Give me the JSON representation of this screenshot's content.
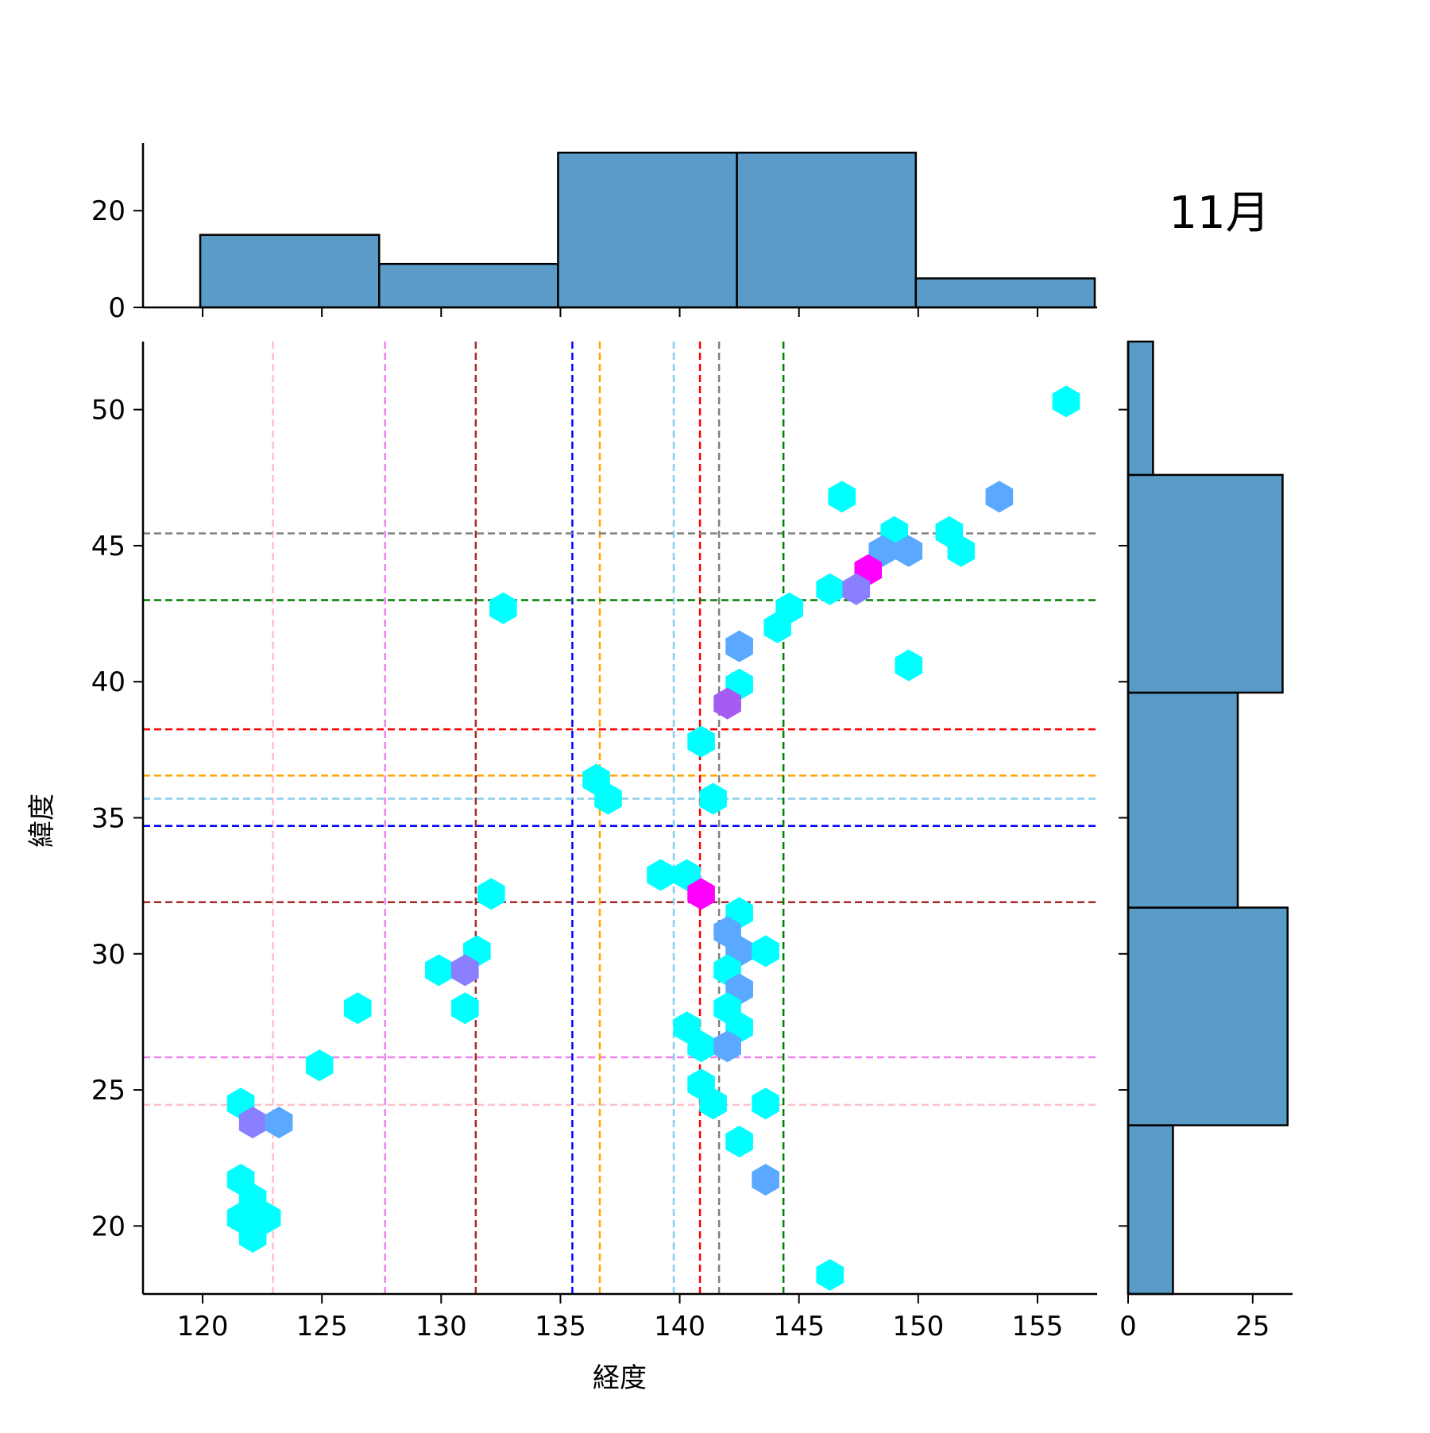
{
  "chart_data": {
    "type": "hexbin",
    "title": "11月",
    "xlabel": "経度",
    "ylabel": "緯度",
    "xlim": [
      117.5,
      157.5
    ],
    "ylim": [
      17.5,
      52.5
    ],
    "xticks": [
      120,
      125,
      130,
      135,
      140,
      145,
      150,
      155
    ],
    "yticks": [
      20,
      25,
      30,
      35,
      40,
      45,
      50
    ],
    "colors": {
      "bar_fill": "#5a9bc8",
      "bar_edge": "#000000",
      "hex_low": "#00ffff",
      "hex_mid": "#5aa8ff",
      "hex_midhigh": "#8a7fff",
      "hex_high": "#a55cf2",
      "hex_max": "#ff00ff"
    },
    "reference_lines": [
      {
        "lon": 122.95,
        "lat": 24.45,
        "color": "#ffc0cb"
      },
      {
        "lon": 127.65,
        "lat": 26.2,
        "color": "#ee82ee"
      },
      {
        "lon": 131.45,
        "lat": 31.9,
        "color": "#a52a2a"
      },
      {
        "lon": 135.5,
        "lat": 34.7,
        "color": "#0000ff"
      },
      {
        "lon": 136.65,
        "lat": 36.55,
        "color": "#ffa500"
      },
      {
        "lon": 139.75,
        "lat": 35.7,
        "color": "#87ceeb"
      },
      {
        "lon": 140.85,
        "lat": 38.25,
        "color": "#ff0000"
      },
      {
        "lon": 141.65,
        "lat": 45.45,
        "color": "#808080"
      },
      {
        "lon": 144.35,
        "lat": 43.0,
        "color": "#008000"
      }
    ],
    "hexbins": [
      {
        "x": 156.2,
        "y": 50.3,
        "level": "low"
      },
      {
        "x": 146.8,
        "y": 46.8,
        "level": "low"
      },
      {
        "x": 153.4,
        "y": 46.8,
        "level": "mid"
      },
      {
        "x": 149.0,
        "y": 45.5,
        "level": "low"
      },
      {
        "x": 151.3,
        "y": 45.5,
        "level": "low"
      },
      {
        "x": 148.5,
        "y": 44.8,
        "level": "mid"
      },
      {
        "x": 149.6,
        "y": 44.8,
        "level": "mid"
      },
      {
        "x": 151.8,
        "y": 44.8,
        "level": "low"
      },
      {
        "x": 147.9,
        "y": 44.1,
        "level": "max"
      },
      {
        "x": 146.3,
        "y": 43.4,
        "level": "low"
      },
      {
        "x": 147.4,
        "y": 43.4,
        "level": "midhigh"
      },
      {
        "x": 132.6,
        "y": 42.7,
        "level": "low"
      },
      {
        "x": 144.6,
        "y": 42.7,
        "level": "low"
      },
      {
        "x": 144.1,
        "y": 42.0,
        "level": "low"
      },
      {
        "x": 142.5,
        "y": 41.3,
        "level": "mid"
      },
      {
        "x": 149.6,
        "y": 40.6,
        "level": "low"
      },
      {
        "x": 142.5,
        "y": 39.9,
        "level": "low"
      },
      {
        "x": 142.0,
        "y": 39.2,
        "level": "high"
      },
      {
        "x": 140.9,
        "y": 37.8,
        "level": "low"
      },
      {
        "x": 136.5,
        "y": 36.4,
        "level": "low"
      },
      {
        "x": 137.0,
        "y": 35.7,
        "level": "low"
      },
      {
        "x": 141.4,
        "y": 35.7,
        "level": "low"
      },
      {
        "x": 139.2,
        "y": 32.9,
        "level": "low"
      },
      {
        "x": 140.3,
        "y": 32.9,
        "level": "low"
      },
      {
        "x": 132.1,
        "y": 32.2,
        "level": "low"
      },
      {
        "x": 140.9,
        "y": 32.2,
        "level": "max"
      },
      {
        "x": 142.5,
        "y": 31.5,
        "level": "low"
      },
      {
        "x": 142.0,
        "y": 30.8,
        "level": "mid"
      },
      {
        "x": 131.5,
        "y": 30.1,
        "level": "low"
      },
      {
        "x": 142.5,
        "y": 30.1,
        "level": "mid"
      },
      {
        "x": 143.6,
        "y": 30.1,
        "level": "low"
      },
      {
        "x": 129.9,
        "y": 29.4,
        "level": "low"
      },
      {
        "x": 131.0,
        "y": 29.4,
        "level": "midhigh"
      },
      {
        "x": 142.0,
        "y": 29.4,
        "level": "low"
      },
      {
        "x": 142.5,
        "y": 28.7,
        "level": "mid"
      },
      {
        "x": 126.5,
        "y": 28.0,
        "level": "low"
      },
      {
        "x": 131.0,
        "y": 28.0,
        "level": "low"
      },
      {
        "x": 142.0,
        "y": 28.0,
        "level": "low"
      },
      {
        "x": 140.3,
        "y": 27.3,
        "level": "low"
      },
      {
        "x": 142.5,
        "y": 27.3,
        "level": "low"
      },
      {
        "x": 140.9,
        "y": 26.6,
        "level": "low"
      },
      {
        "x": 142.0,
        "y": 26.6,
        "level": "mid"
      },
      {
        "x": 124.9,
        "y": 25.9,
        "level": "low"
      },
      {
        "x": 140.9,
        "y": 25.2,
        "level": "low"
      },
      {
        "x": 121.6,
        "y": 24.5,
        "level": "low"
      },
      {
        "x": 141.4,
        "y": 24.5,
        "level": "low"
      },
      {
        "x": 143.6,
        "y": 24.5,
        "level": "low"
      },
      {
        "x": 122.1,
        "y": 23.8,
        "level": "midhigh"
      },
      {
        "x": 123.2,
        "y": 23.8,
        "level": "mid"
      },
      {
        "x": 142.5,
        "y": 23.1,
        "level": "low"
      },
      {
        "x": 121.6,
        "y": 21.7,
        "level": "low"
      },
      {
        "x": 143.6,
        "y": 21.7,
        "level": "mid"
      },
      {
        "x": 122.1,
        "y": 21.0,
        "level": "low"
      },
      {
        "x": 121.6,
        "y": 20.3,
        "level": "low"
      },
      {
        "x": 122.7,
        "y": 20.3,
        "level": "low"
      },
      {
        "x": 122.1,
        "y": 19.6,
        "level": "low"
      },
      {
        "x": 146.3,
        "y": 18.2,
        "level": "low"
      }
    ],
    "marginal_x": {
      "edges": [
        119.9,
        127.4,
        134.9,
        142.4,
        149.9,
        157.4
      ],
      "counts": [
        15,
        9,
        32,
        32,
        6
      ],
      "ylim": [
        0,
        34
      ],
      "yticks": [
        0,
        20
      ]
    },
    "marginal_y": {
      "edges": [
        15.8,
        23.7,
        31.7,
        39.6,
        47.6,
        55.5
      ],
      "counts": [
        9,
        32,
        22,
        31,
        5
      ],
      "xlim": [
        0,
        33
      ],
      "xticks": [
        0,
        25
      ]
    }
  }
}
